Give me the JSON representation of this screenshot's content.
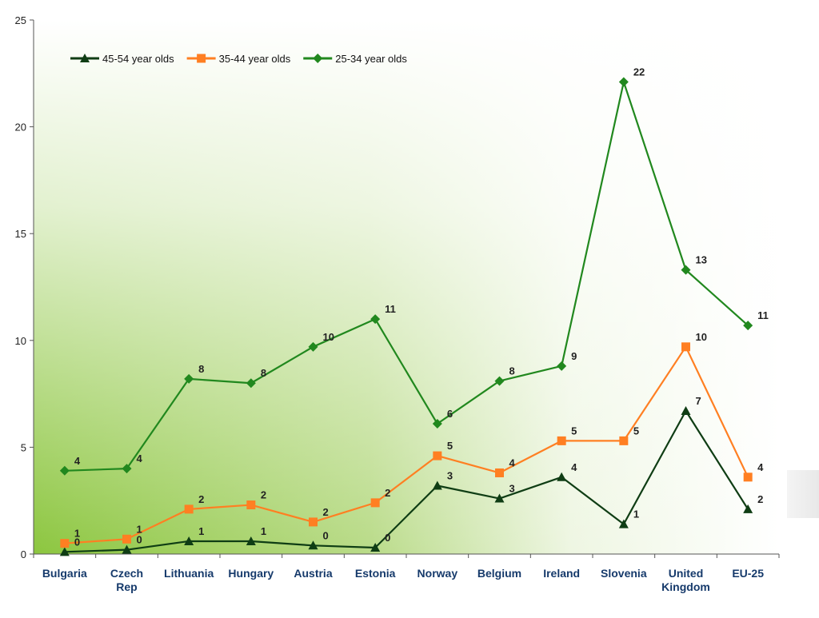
{
  "chart_data": {
    "type": "line",
    "categories": [
      "Bulgaria",
      "Czech Rep",
      "Lithuania",
      "Hungary",
      "Austria",
      "Estonia",
      "Norway",
      "Belgium",
      "Ireland",
      "Slovenia",
      "United Kingdom",
      "EU-25"
    ],
    "category_labels": [
      [
        "Bulgaria"
      ],
      [
        "Czech",
        "Rep"
      ],
      [
        "Lithuania"
      ],
      [
        "Hungary"
      ],
      [
        "Austria"
      ],
      [
        "Estonia"
      ],
      [
        "Norway"
      ],
      [
        "Belgium"
      ],
      [
        "Ireland"
      ],
      [
        "Slovenia"
      ],
      [
        "United",
        "Kingdom"
      ],
      [
        "EU-25"
      ]
    ],
    "series": [
      {
        "name": "45-54 year olds",
        "color": "#0f3d14",
        "marker": "triangle",
        "values": [
          0.1,
          0.2,
          0.6,
          0.6,
          0.4,
          0.3,
          3.2,
          2.6,
          3.6,
          1.4,
          6.7,
          2.1
        ],
        "labels": [
          "0",
          "0",
          "1",
          "1",
          "0",
          "0",
          "3",
          "3",
          "4",
          "1",
          "7",
          "2"
        ]
      },
      {
        "name": "35-44 year olds",
        "color": "#ff7f22",
        "marker": "square",
        "values": [
          0.5,
          0.7,
          2.1,
          2.3,
          1.5,
          2.4,
          4.6,
          3.8,
          5.3,
          5.3,
          9.7,
          3.6
        ],
        "labels": [
          "1",
          "1",
          "2",
          "2",
          "2",
          "2",
          "5",
          "4",
          "5",
          "5",
          "10",
          "4"
        ]
      },
      {
        "name": "25-34 year olds",
        "color": "#21881e",
        "marker": "diamond",
        "values": [
          3.9,
          4.0,
          8.2,
          8.0,
          9.7,
          11.0,
          6.1,
          8.1,
          8.8,
          22.1,
          13.3,
          10.7
        ],
        "labels": [
          "4",
          "4",
          "8",
          "8",
          "10",
          "11",
          "6",
          "8",
          "9",
          "22",
          "13",
          "11"
        ]
      }
    ],
    "ylim": [
      0,
      25
    ],
    "yticks": [
      "0",
      "5",
      "10",
      "15",
      "20",
      "25"
    ],
    "grid": false,
    "legend_position": "top-left",
    "xlabel": "",
    "ylabel": "",
    "title": ""
  }
}
